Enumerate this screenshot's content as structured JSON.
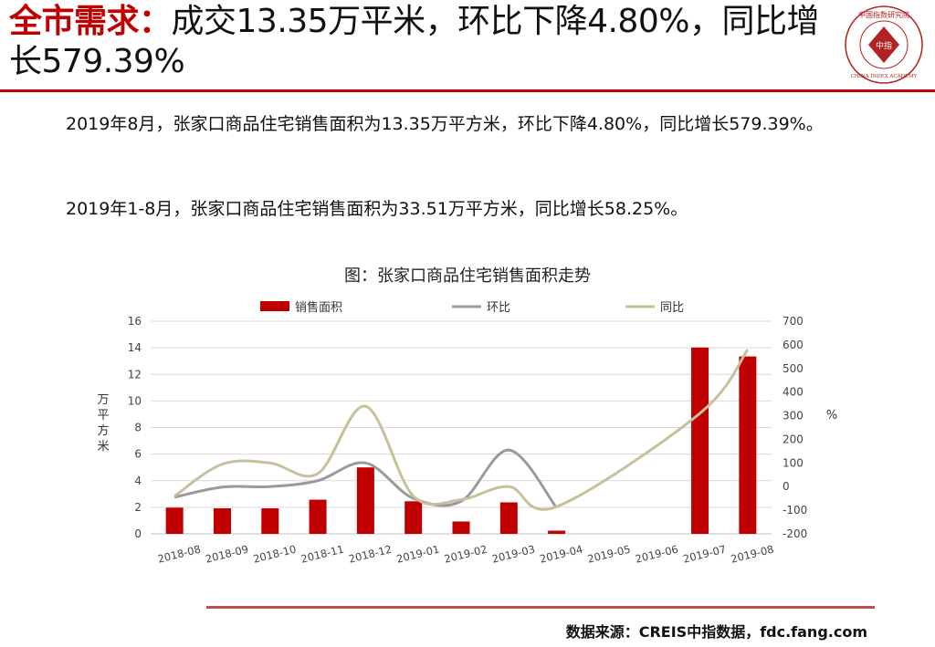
{
  "header": {
    "title_highlight": "全市需求：",
    "title_rest": "成交13.35万平米，环比下降4.80%，同比增长579.39%"
  },
  "logo": {
    "top_text": "中国指数研究院",
    "center_text": "中指",
    "bottom_text": "CHINA INDEX ACADEMY",
    "color": "#b22222"
  },
  "body": {
    "para1": "2019年8月，张家口商品住宅销售面积为13.35万平方米，环比下降4.80%，同比增长579.39%。",
    "para2": "2019年1-8月，张家口商品住宅销售面积为33.51万平方米，同比增长58.25%。"
  },
  "chart_data": {
    "type": "bar",
    "title": "图：张家口商品住宅销售面积走势",
    "categories": [
      "2018-08",
      "2018-09",
      "2018-10",
      "2018-11",
      "2018-12",
      "2019-01",
      "2019-02",
      "2019-03",
      "2019-04",
      "2019-05",
      "2019-06",
      "2019-07",
      "2019-08"
    ],
    "ylabel": "万平方米",
    "ylim": [
      0,
      16
    ],
    "yticks": [
      0,
      2,
      4,
      6,
      8,
      10,
      12,
      14,
      16
    ],
    "y2label": "%",
    "y2lim": [
      -200,
      700
    ],
    "y2ticks": [
      -200,
      -100,
      0,
      100,
      200,
      300,
      400,
      500,
      600,
      700
    ],
    "legend_position": "top",
    "grid": "horizontal",
    "series": [
      {
        "name": "销售面积",
        "type": "bar",
        "axis": "left",
        "color": "#c00000",
        "values": [
          1.97,
          1.92,
          1.92,
          2.57,
          5.0,
          2.45,
          0.93,
          2.37,
          0.24,
          null,
          null,
          14.02,
          13.35
        ]
      },
      {
        "name": "环比",
        "type": "line",
        "axis": "right",
        "color": "#9a9a9a",
        "values": [
          -45,
          -2,
          0,
          25,
          100,
          -50,
          -62,
          155,
          -90,
          null,
          null,
          null,
          null
        ]
      },
      {
        "name": "同比",
        "type": "line",
        "axis": "right",
        "color": "#c8c09c",
        "values": [
          -40,
          95,
          100,
          55,
          340,
          -40,
          -55,
          0,
          -85,
          null,
          null,
          310,
          579.39
        ]
      }
    ]
  },
  "footer": {
    "source": "数据来源：CREIS中指数据，fdc.fang.com"
  }
}
